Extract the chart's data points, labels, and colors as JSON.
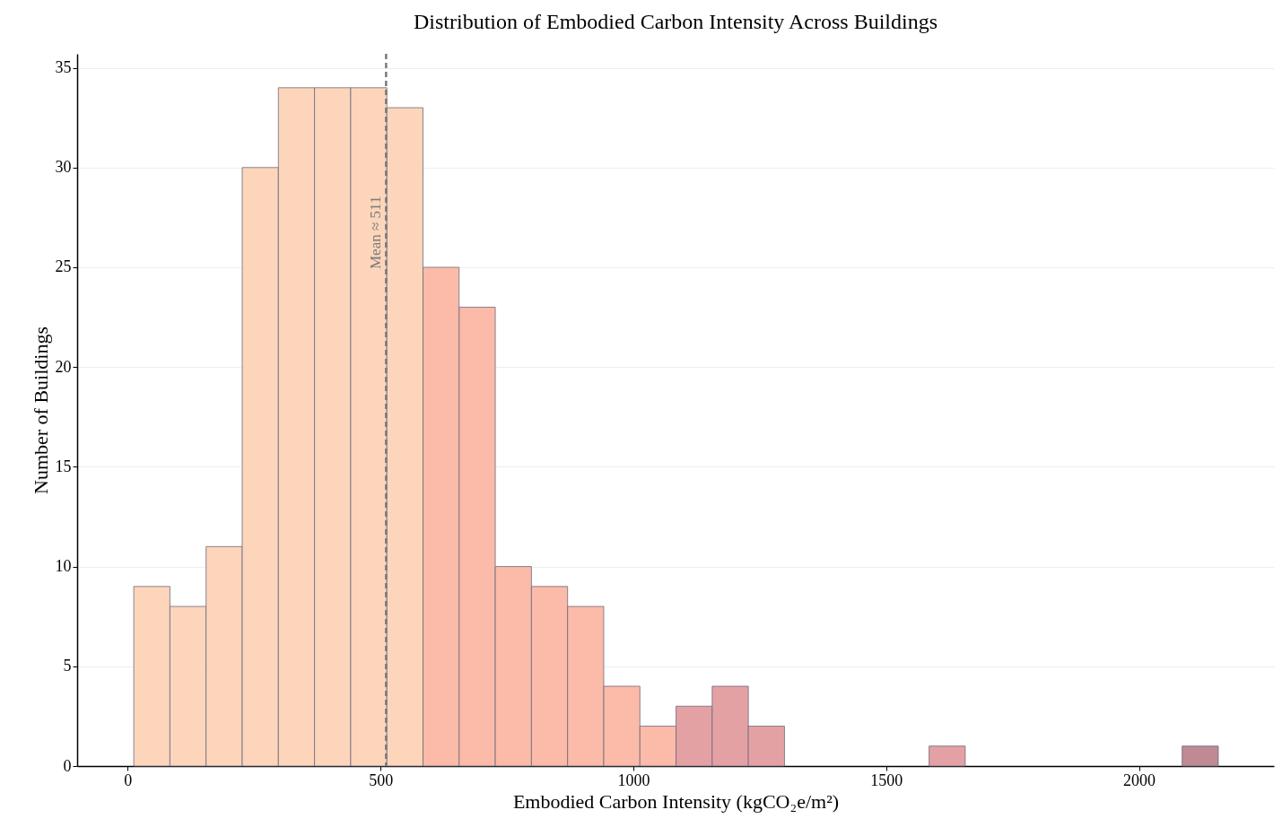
{
  "chart_data": {
    "type": "histogram",
    "title": "Distribution of Embodied Carbon Intensity Across Buildings",
    "xlabel": "Embodied Carbon Intensity (kgCO₂e/m²)",
    "ylabel": "Number of Buildings",
    "bins": [
      12,
      83.5,
      155,
      226.5,
      298,
      369.5,
      441,
      512.5,
      584,
      655.5,
      727,
      798.5,
      870,
      941.5,
      1013,
      1084.5,
      1156,
      1227.5,
      1299,
      1370.5,
      1442,
      1513.5,
      1585,
      1656.5,
      1728,
      1799.5,
      1871,
      1942.5,
      2014,
      2085.5,
      2157
    ],
    "values": [
      9,
      8,
      11,
      30,
      34,
      34,
      34,
      33,
      25,
      23,
      10,
      9,
      8,
      4,
      2,
      3,
      4,
      2,
      0,
      0,
      0,
      0,
      1,
      0,
      0,
      0,
      0,
      0,
      0,
      1
    ],
    "colors": [
      "#fdd5bb",
      "#fdd5bb",
      "#fdd5bb",
      "#fdd5bb",
      "#fdd5bb",
      "#fdd5bb",
      "#fdd5bb",
      "#fdd5bb",
      "#fcbaa8",
      "#fcbaa8",
      "#fcbaa8",
      "#fcbaa8",
      "#fcbaa8",
      "#fcbaa8",
      "#fcbaa8",
      "#e4a1a4",
      "#e4a1a4",
      "#e4a1a4",
      "#e4a1a4",
      "#e4a1a4",
      "#e4a1a4",
      "#e4a1a4",
      "#e4a1a4",
      "#e4a1a4",
      "#e4a1a4",
      "#e4a1a4",
      "#e4a1a4",
      "#e4a1a4",
      "#e4a1a4",
      "#bf8a93"
    ],
    "xlim": [
      -100,
      2267
    ],
    "xticks": [
      0,
      500,
      1000,
      1500,
      2000
    ],
    "ylim": [
      0,
      35.7
    ],
    "yticks": [
      0,
      5,
      10,
      15,
      20,
      25,
      30,
      35
    ],
    "grid": "y",
    "ref_lines": [
      {
        "axis": "x",
        "value": 511,
        "label": "Mean ≈ 511",
        "color": "#7a7a7a",
        "line_style": "dashed"
      }
    ]
  }
}
